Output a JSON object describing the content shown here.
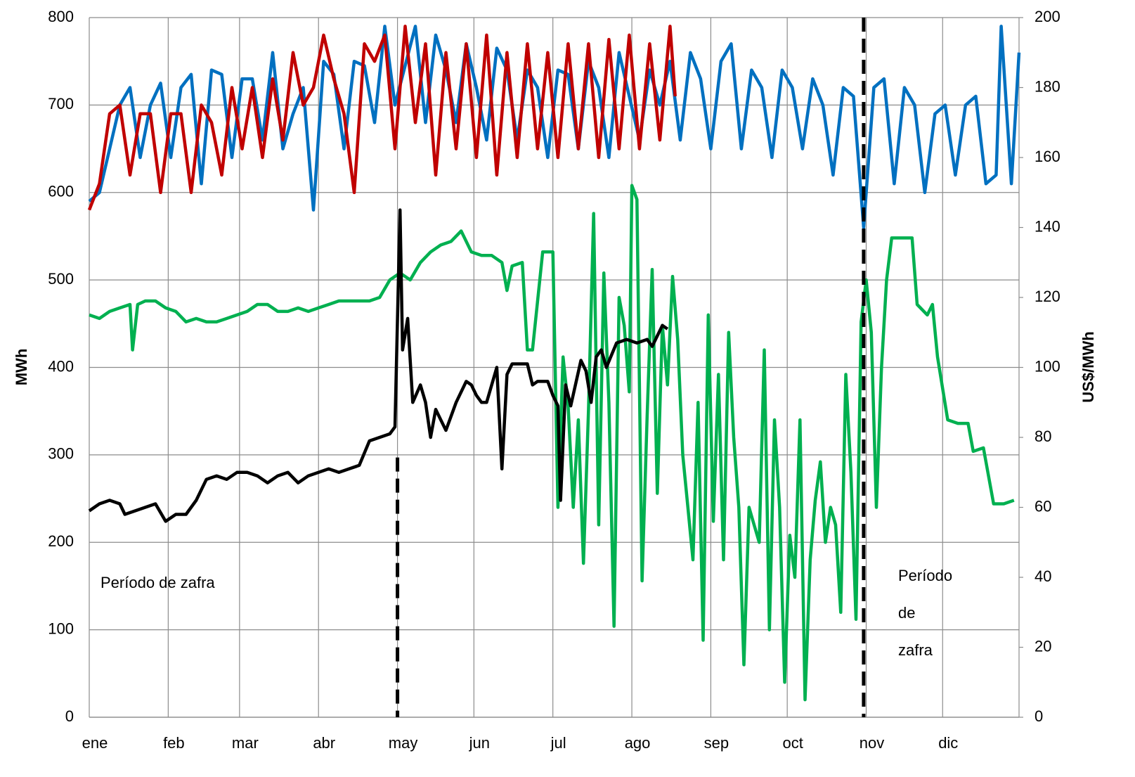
{
  "chart_data": {
    "type": "line",
    "ylabel": "MWh",
    "y2label": "US$/MWh",
    "xlim": [
      0,
      365
    ],
    "xticks": [
      {
        "value": 0,
        "label": "ene"
      },
      {
        "value": 31,
        "label": "feb"
      },
      {
        "value": 59,
        "label": "mar"
      },
      {
        "value": 90,
        "label": "abr"
      },
      {
        "value": 121,
        "label": "may"
      },
      {
        "value": 151,
        "label": "jun"
      },
      {
        "value": 182,
        "label": "jul"
      },
      {
        "value": 213,
        "label": "ago"
      },
      {
        "value": 244,
        "label": "sep"
      },
      {
        "value": 274,
        "label": "oct"
      },
      {
        "value": 305,
        "label": "nov"
      },
      {
        "value": 335,
        "label": "dic"
      }
    ],
    "ylim": [
      0,
      800
    ],
    "yticks": [
      0,
      100,
      200,
      300,
      400,
      500,
      600,
      700,
      800
    ],
    "y2lim": [
      0,
      200
    ],
    "y2ticks": [
      0,
      20,
      40,
      60,
      80,
      100,
      120,
      140,
      160,
      180,
      200
    ],
    "grid": true,
    "series": [
      {
        "color": "#0070c0",
        "axis": "y",
        "x": [
          0,
          4,
          8,
          12,
          16,
          20,
          24,
          28,
          32,
          36,
          40,
          44,
          48,
          52,
          56,
          60,
          64,
          68,
          72,
          76,
          80,
          84,
          88,
          92,
          96,
          100,
          104,
          108,
          112,
          116,
          120,
          124,
          128,
          132,
          136,
          140,
          144,
          148,
          152,
          156,
          160,
          164,
          168,
          172,
          176,
          180,
          184,
          188,
          192,
          196,
          200,
          204,
          208,
          212,
          216,
          220,
          224,
          228,
          232,
          236,
          240,
          244,
          248,
          252,
          256,
          260,
          264,
          268,
          272,
          276,
          280,
          284,
          288,
          292,
          296,
          300,
          304,
          308,
          312,
          316,
          320,
          324,
          328,
          332,
          336,
          340,
          344,
          348,
          352,
          356,
          358,
          362,
          365
        ],
        "values": [
          590,
          600,
          650,
          700,
          720,
          640,
          700,
          725,
          640,
          720,
          735,
          610,
          740,
          735,
          640,
          730,
          730,
          660,
          760,
          650,
          690,
          720,
          580,
          750,
          735,
          650,
          750,
          745,
          680,
          790,
          700,
          745,
          790,
          680,
          780,
          740,
          680,
          770,
          720,
          660,
          765,
          740,
          660,
          740,
          720,
          640,
          740,
          735,
          650,
          750,
          720,
          640,
          760,
          710,
          660,
          740,
          700,
          750,
          660,
          760,
          730,
          650,
          750,
          770,
          650,
          740,
          720,
          640,
          740,
          720,
          650,
          730,
          700,
          620,
          720,
          710,
          560,
          720,
          730,
          610,
          720,
          700,
          600,
          690,
          700,
          620,
          700,
          710,
          610,
          620,
          790,
          610,
          760
        ]
      },
      {
        "color": "#c00000",
        "axis": "y",
        "x": [
          0,
          4,
          8,
          12,
          16,
          20,
          24,
          28,
          32,
          36,
          40,
          44,
          48,
          52,
          56,
          60,
          64,
          68,
          72,
          76,
          80,
          84,
          88,
          92,
          96,
          100,
          104,
          108,
          112,
          116,
          120,
          124,
          128,
          132,
          136,
          140,
          144,
          148,
          152,
          156,
          160,
          164,
          168,
          172,
          176,
          180,
          184,
          188,
          192,
          196,
          200,
          204,
          208,
          212,
          216,
          220,
          224,
          228,
          230
        ],
        "values": [
          580,
          610,
          690,
          700,
          620,
          690,
          690,
          600,
          690,
          690,
          600,
          700,
          680,
          620,
          720,
          650,
          720,
          640,
          730,
          660,
          760,
          700,
          720,
          780,
          730,
          690,
          600,
          770,
          750,
          780,
          650,
          790,
          680,
          770,
          620,
          760,
          650,
          770,
          640,
          780,
          620,
          760,
          640,
          770,
          650,
          760,
          640,
          770,
          650,
          770,
          640,
          775,
          650,
          780,
          650,
          770,
          660,
          790,
          710
        ]
      },
      {
        "color": "#00b050",
        "axis": "y2",
        "x": [
          0,
          4,
          8,
          12,
          16,
          17,
          19,
          22,
          26,
          30,
          34,
          38,
          42,
          46,
          50,
          54,
          58,
          62,
          66,
          70,
          74,
          78,
          82,
          86,
          90,
          94,
          98,
          102,
          106,
          110,
          114,
          118,
          122,
          126,
          130,
          134,
          138,
          142,
          146,
          150,
          154,
          158,
          162,
          164,
          166,
          170,
          172,
          174,
          178,
          182,
          184,
          186,
          188,
          190,
          192,
          194,
          196,
          198,
          200,
          202,
          204,
          206,
          208,
          210,
          212,
          213,
          215,
          217,
          219,
          221,
          223,
          225,
          227,
          229,
          231,
          233,
          235,
          237,
          239,
          241,
          243,
          245,
          247,
          249,
          251,
          253,
          255,
          257,
          259,
          261,
          263,
          265,
          267,
          269,
          271,
          273,
          275,
          277,
          279,
          281,
          283,
          285,
          287,
          289,
          291,
          293,
          295,
          297,
          299,
          301,
          303,
          305,
          307,
          309,
          311,
          313,
          315,
          319,
          323,
          325,
          329,
          331,
          333,
          337,
          341,
          345,
          347,
          351,
          355,
          359,
          363
        ],
        "values": [
          115,
          114,
          116,
          117,
          118,
          105,
          118,
          119,
          119,
          117,
          116,
          113,
          114,
          113,
          113,
          114,
          115,
          116,
          118,
          118,
          116,
          116,
          117,
          116,
          117,
          118,
          119,
          119,
          119,
          119,
          120,
          125,
          127,
          125,
          130,
          133,
          135,
          136,
          139,
          133,
          132,
          132,
          130,
          122,
          129,
          130,
          105,
          105,
          133,
          133,
          60,
          103,
          89,
          60,
          85,
          44,
          88,
          144,
          55,
          127,
          90,
          26,
          120,
          112,
          93,
          152,
          148,
          39,
          86,
          128,
          64,
          112,
          95,
          126,
          108,
          75,
          60,
          45,
          90,
          22,
          115,
          56,
          98,
          45,
          110,
          80,
          60,
          15,
          60,
          55,
          50,
          105,
          25,
          85,
          60,
          10,
          52,
          40,
          85,
          5,
          45,
          62,
          73,
          50,
          60,
          55,
          30,
          98,
          70,
          28,
          113,
          125,
          110,
          60,
          100,
          125,
          137,
          137,
          137,
          118,
          115,
          118,
          103,
          85,
          84,
          84,
          76,
          77,
          61,
          61,
          62
        ]
      },
      {
        "color": "#000000",
        "axis": "y2",
        "x": [
          0,
          4,
          8,
          12,
          14,
          18,
          22,
          26,
          30,
          34,
          38,
          42,
          46,
          50,
          54,
          58,
          62,
          66,
          70,
          74,
          78,
          82,
          86,
          90,
          94,
          98,
          102,
          106,
          110,
          114,
          118,
          120,
          122,
          123,
          125,
          127,
          130,
          132,
          134,
          136,
          138,
          140,
          144,
          148,
          150,
          152,
          154,
          156,
          160,
          162,
          164,
          166,
          168,
          172,
          174,
          176,
          180,
          182,
          184,
          185,
          187,
          189,
          193,
          195,
          197,
          199,
          201,
          203,
          207,
          211,
          215,
          219,
          221,
          225,
          227
        ],
        "values": [
          59,
          61,
          62,
          61,
          58,
          59,
          60,
          61,
          56,
          58,
          58,
          62,
          68,
          69,
          68,
          70,
          70,
          69,
          67,
          69,
          70,
          67,
          69,
          70,
          71,
          70,
          71,
          72,
          79,
          80,
          81,
          83,
          145,
          105,
          114,
          90,
          95,
          90,
          80,
          88,
          85,
          82,
          90,
          96,
          95,
          92,
          90,
          90,
          100,
          71,
          98,
          101,
          101,
          101,
          95,
          96,
          96,
          92,
          89,
          62,
          95,
          89,
          102,
          99,
          90,
          103,
          105,
          100,
          107,
          108,
          107,
          108,
          106,
          112,
          111
        ]
      }
    ],
    "vlines": [
      {
        "x": 121,
        "top": 297
      },
      {
        "x": 304,
        "top": 800
      }
    ],
    "annotations": [
      "Período de zafra",
      "Período de zafra"
    ]
  }
}
